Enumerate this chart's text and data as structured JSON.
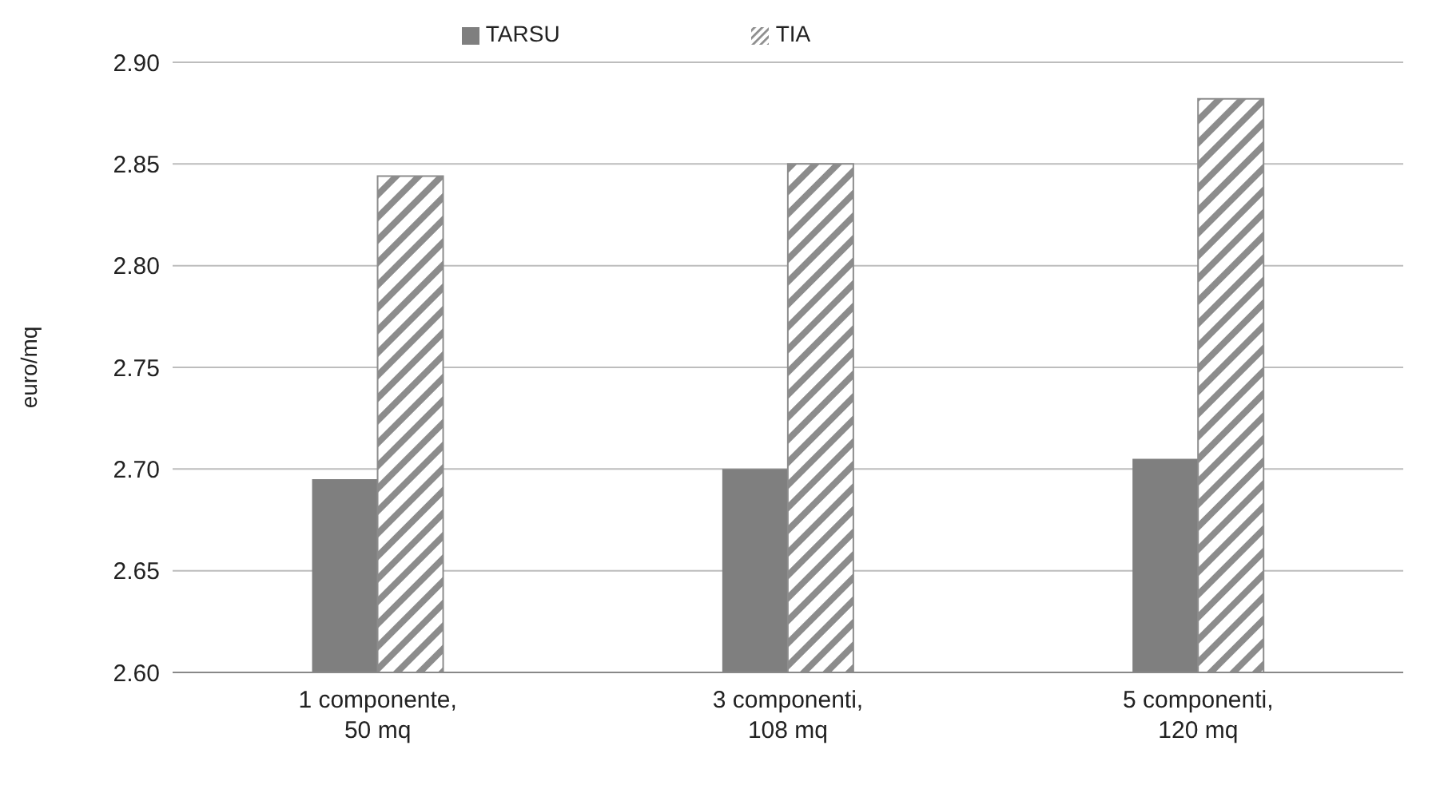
{
  "chart_data": {
    "type": "bar",
    "ylabel": "euro/mq",
    "categories": [
      "1 componente,\n50 mq",
      "3 componenti,\n108 mq",
      "5 componenti,\n120 mq"
    ],
    "series": [
      {
        "name": "TARSU",
        "color": "#7f7f7f",
        "values": [
          2.695,
          2.7,
          2.705
        ]
      },
      {
        "name": "TIA",
        "color": "#8c8c8c",
        "values": [
          2.844,
          2.85,
          2.882
        ]
      }
    ],
    "ylim": [
      2.6,
      2.9
    ],
    "yticks": [
      {
        "value": 2.6,
        "label": "2.60"
      },
      2.65,
      {
        "value": 2.7,
        "label": "2.70"
      },
      2.75,
      {
        "value": 2.8,
        "label": "2.80"
      },
      2.85,
      {
        "value": 2.9,
        "label": "2.90"
      }
    ],
    "grid": "y",
    "legend": "top"
  }
}
